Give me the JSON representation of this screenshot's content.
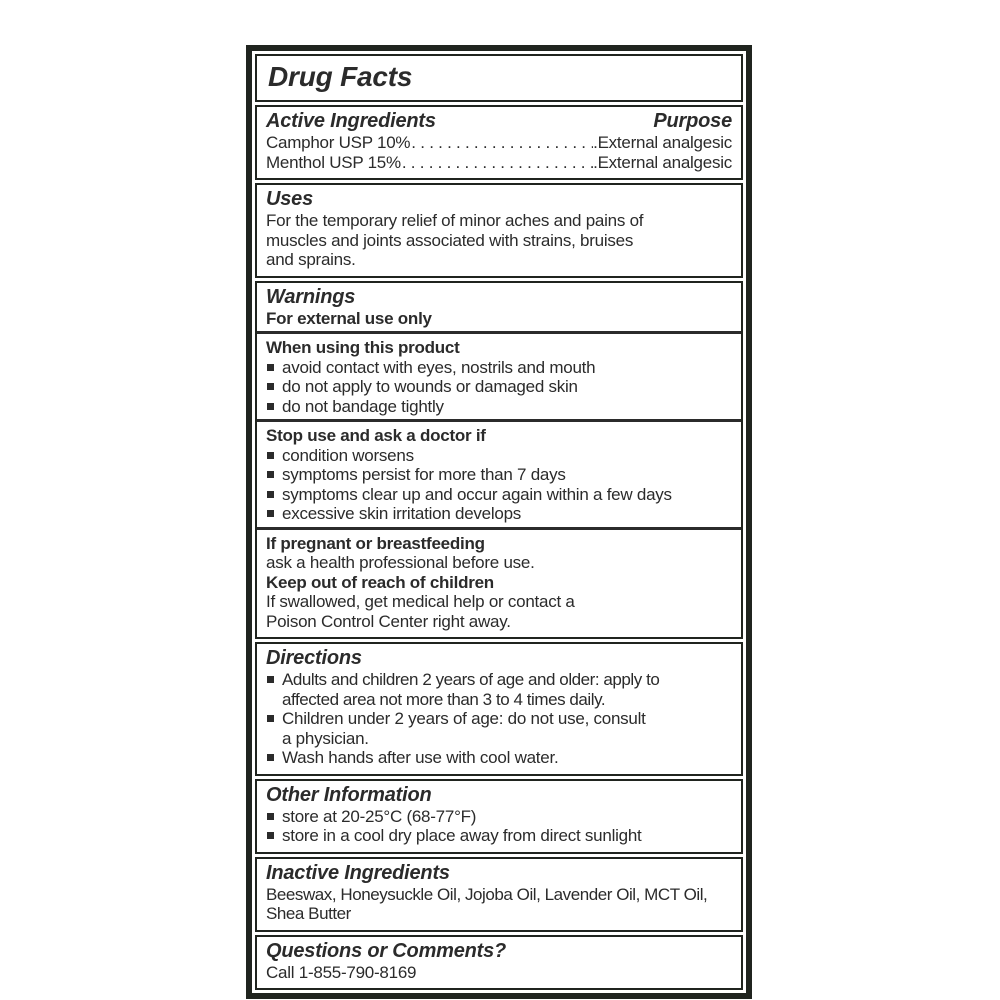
{
  "title": "Drug Facts",
  "active_ingredients": {
    "heading": "Active Ingredients",
    "purpose_heading": "Purpose",
    "rows": [
      {
        "name": "Camphor USP 10%",
        "leader": ". . . . . . . . . . . . . . . . . . . . . . . . . . . .",
        "purpose": ".External analgesic"
      },
      {
        "name": "Menthol USP 15%",
        "leader": ". . . . . . . . . . . . . . . . . . . . . . . . . . . .",
        "purpose": ".External analgesic"
      }
    ]
  },
  "uses": {
    "heading": "Uses",
    "body": "For the temporary relief of minor aches and pains of\nmuscles and joints associated with strains, bruises\nand sprains."
  },
  "warnings": {
    "heading": "Warnings",
    "external_use": "For external use only",
    "when_using": {
      "heading": "When using this product",
      "bullets": [
        "avoid contact with eyes, nostrils and mouth",
        "do not apply to wounds or damaged skin",
        "do not bandage tightly"
      ]
    },
    "stop_use": {
      "heading": "Stop use and ask a doctor if",
      "bullets": [
        "condition worsens",
        "symptoms persist for more than 7 days",
        "symptoms clear up and occur again within a few days",
        "excessive skin irritation develops"
      ]
    },
    "pregnant": {
      "heading": "If pregnant or breastfeeding",
      "body": "ask a health professional before use."
    },
    "children": {
      "heading": "Keep out of reach of children",
      "body": "If swallowed, get medical help or contact a\nPoison Control Center right away."
    }
  },
  "directions": {
    "heading": "Directions",
    "bullets": [
      "Adults and children 2 years of age and older: apply to\naffected area not more than 3 to 4 times daily.",
      "Children under 2 years of age: do not use, consult\na physician.",
      "Wash hands after use with cool water."
    ]
  },
  "other_information": {
    "heading": "Other Information",
    "bullets": [
      "store at 20-25°C (68-77°F)",
      "store in a cool dry place away from direct sunlight"
    ]
  },
  "inactive_ingredients": {
    "heading": "Inactive Ingredients",
    "body": "Beeswax, Honeysuckle Oil, Jojoba Oil, Lavender Oil, MCT Oil,\nShea Butter"
  },
  "questions": {
    "heading": "Questions or Comments?",
    "body": "Call 1-855-790-8169"
  },
  "colors": {
    "border": "#20241f",
    "text": "#2b2b2b",
    "background": "#ffffff"
  }
}
